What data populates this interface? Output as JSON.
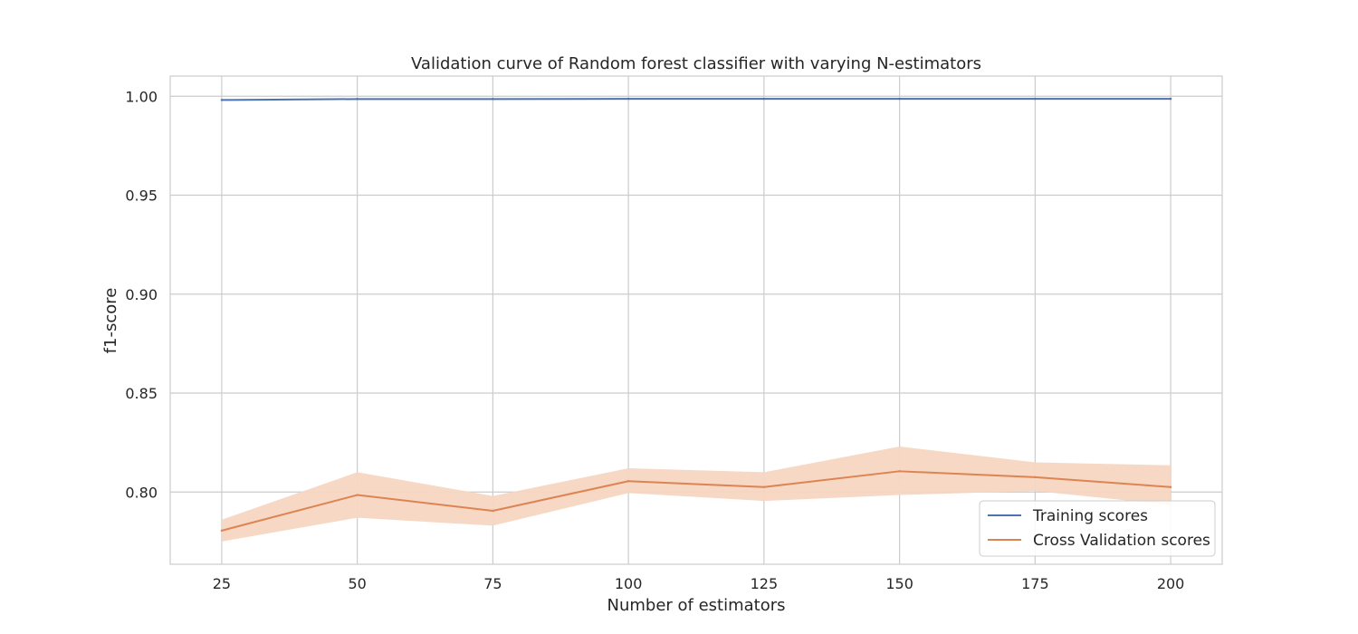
{
  "chart_data": {
    "type": "line",
    "title": "Validation curve of Random forest classifier with varying N-estimators",
    "xlabel": "Number of estimators",
    "ylabel": "f1-score",
    "x": [
      25,
      50,
      75,
      100,
      125,
      150,
      175,
      200
    ],
    "xlim": [
      15.5,
      209.5
    ],
    "ylim": [
      0.7635,
      1.0102
    ],
    "xticks": [
      25,
      50,
      75,
      100,
      125,
      150,
      175,
      200
    ],
    "yticks": [
      0.8,
      0.85,
      0.9,
      0.95,
      1.0
    ],
    "ytick_labels": [
      "0.80",
      "0.85",
      "0.90",
      "0.95",
      "1.00"
    ],
    "grid": true,
    "legend_position": "lower-right",
    "series": [
      {
        "name": "Training scores",
        "color": "#4c72b0",
        "values": [
          0.9981,
          0.9986,
          0.9986,
          0.9987,
          0.9987,
          0.9987,
          0.9987,
          0.9987
        ],
        "band_lower": [
          0.9979,
          0.9985,
          0.9985,
          0.9986,
          0.9986,
          0.9986,
          0.9986,
          0.9986
        ],
        "band_upper": [
          0.9983,
          0.9987,
          0.9987,
          0.9988,
          0.9988,
          0.9988,
          0.9988,
          0.9988
        ]
      },
      {
        "name": "Cross Validation scores",
        "color": "#dd8452",
        "band_color": "#f6d6c2",
        "values": [
          0.7805,
          0.7985,
          0.7905,
          0.8055,
          0.8025,
          0.8105,
          0.8075,
          0.8025
        ],
        "band_lower": [
          0.775,
          0.787,
          0.783,
          0.7995,
          0.7955,
          0.7985,
          0.8005,
          0.7935
        ],
        "band_upper": [
          0.786,
          0.81,
          0.798,
          0.812,
          0.81,
          0.823,
          0.815,
          0.8135
        ]
      }
    ]
  }
}
